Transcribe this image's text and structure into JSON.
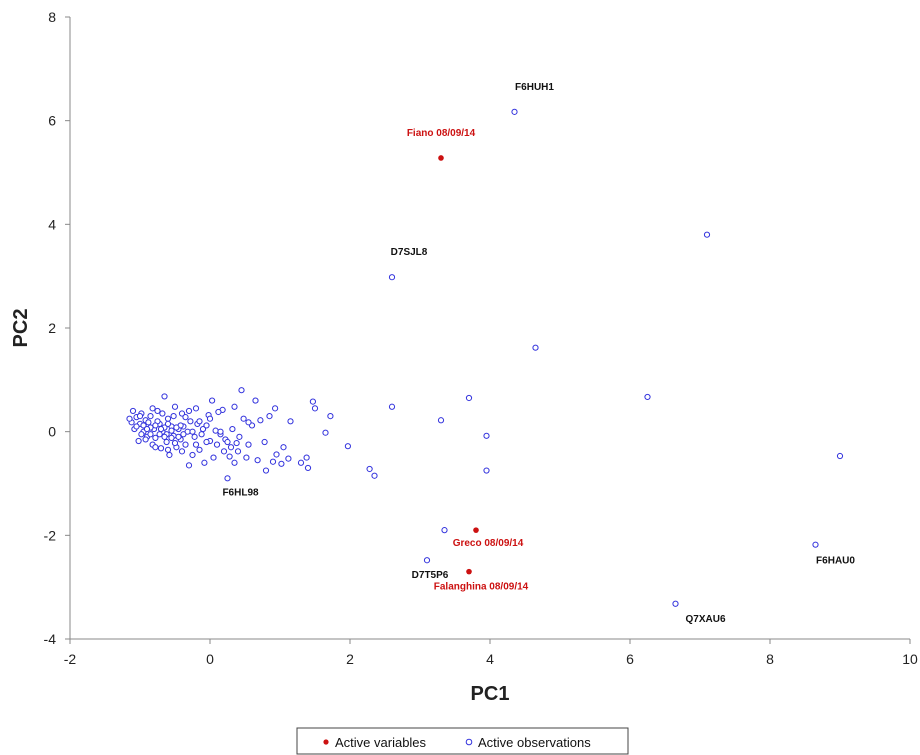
{
  "chart_data": {
    "type": "scatter",
    "xlabel": "PC1",
    "ylabel": "PC2",
    "xlim": [
      -2,
      10
    ],
    "ylim": [
      -4,
      8
    ],
    "xticks": [
      -2,
      0,
      2,
      4,
      6,
      8,
      10
    ],
    "yticks": [
      -4,
      -2,
      0,
      2,
      4,
      6,
      8
    ],
    "grid": false,
    "legend_position": "bottom-center",
    "series": [
      {
        "name": "Active variables",
        "color": "#cc1111",
        "marker": "filled-circle",
        "points": [
          {
            "x": 3.3,
            "y": 5.28,
            "label": "Fiano 08/09/14"
          },
          {
            "x": 3.8,
            "y": -1.9,
            "label": "Greco 08/09/14"
          },
          {
            "x": 3.7,
            "y": -2.7,
            "label": "Falanghina 08/09/14"
          }
        ]
      },
      {
        "name": "Active observations",
        "color": "#3333dd",
        "marker": "open-circle",
        "points": [
          {
            "x": 4.35,
            "y": 6.17,
            "label": "F6HUH1"
          },
          {
            "x": 2.6,
            "y": 2.98,
            "label": "D7SJL8"
          },
          {
            "x": 7.1,
            "y": 3.8
          },
          {
            "x": 4.65,
            "y": 1.62
          },
          {
            "x": 6.25,
            "y": 0.67
          },
          {
            "x": 9.0,
            "y": -0.47
          },
          {
            "x": 8.65,
            "y": -2.18,
            "label": "F6HAU0"
          },
          {
            "x": 6.65,
            "y": -3.32,
            "label": "Q7XAU6"
          },
          {
            "x": 3.1,
            "y": -2.48,
            "label": "D7T5P6"
          },
          {
            "x": 3.35,
            "y": -1.9
          },
          {
            "x": 3.7,
            "y": 0.65
          },
          {
            "x": 3.3,
            "y": 0.22
          },
          {
            "x": 3.95,
            "y": -0.08
          },
          {
            "x": 3.95,
            "y": -0.75
          },
          {
            "x": 2.6,
            "y": 0.48
          },
          {
            "x": 2.35,
            "y": -0.85
          },
          {
            "x": 2.28,
            "y": -0.72
          },
          {
            "x": 1.97,
            "y": -0.28
          },
          {
            "x": 1.72,
            "y": 0.3
          },
          {
            "x": 1.65,
            "y": -0.02
          },
          {
            "x": 1.5,
            "y": 0.45
          },
          {
            "x": 1.47,
            "y": 0.58
          },
          {
            "x": 1.4,
            "y": -0.7
          },
          {
            "x": 1.38,
            "y": -0.5
          },
          {
            "x": 1.3,
            "y": -0.6
          },
          {
            "x": 1.15,
            "y": 0.2
          },
          {
            "x": 1.12,
            "y": -0.52
          },
          {
            "x": 1.05,
            "y": -0.3
          },
          {
            "x": 1.02,
            "y": -0.62
          },
          {
            "x": 0.95,
            "y": -0.44
          },
          {
            "x": 0.93,
            "y": 0.45
          },
          {
            "x": 0.9,
            "y": -0.58
          },
          {
            "x": 0.85,
            "y": 0.3
          },
          {
            "x": 0.8,
            "y": -0.75
          },
          {
            "x": 0.78,
            "y": -0.2
          },
          {
            "x": 0.72,
            "y": 0.22
          },
          {
            "x": 0.68,
            "y": -0.55
          },
          {
            "x": 0.65,
            "y": 0.6
          },
          {
            "x": 0.6,
            "y": 0.12
          },
          {
            "x": 0.55,
            "y": -0.25
          },
          {
            "x": 0.52,
            "y": -0.5
          },
          {
            "x": 0.48,
            "y": 0.25
          },
          {
            "x": 0.45,
            "y": 0.8
          },
          {
            "x": 0.42,
            "y": -0.1
          },
          {
            "x": 0.4,
            "y": -0.38
          },
          {
            "x": 0.38,
            "y": -0.22
          },
          {
            "x": 0.35,
            "y": -0.6
          },
          {
            "x": 0.32,
            "y": 0.05
          },
          {
            "x": 0.3,
            "y": -0.3
          },
          {
            "x": 0.28,
            "y": -0.48
          },
          {
            "x": 0.25,
            "y": -0.9,
            "label": "F6HL98"
          },
          {
            "x": 0.22,
            "y": -0.15
          },
          {
            "x": 0.2,
            "y": -0.38
          },
          {
            "x": 0.18,
            "y": 0.42
          },
          {
            "x": 0.15,
            "y": -0.05
          },
          {
            "x": 0.12,
            "y": 0.38
          },
          {
            "x": 0.1,
            "y": -0.25
          },
          {
            "x": 0.08,
            "y": 0.02
          },
          {
            "x": 0.05,
            "y": -0.5
          },
          {
            "x": 0.03,
            "y": 0.6
          },
          {
            "x": 0.0,
            "y": -0.18
          },
          {
            "x": -0.02,
            "y": 0.32
          },
          {
            "x": -0.05,
            "y": -0.2
          },
          {
            "x": -0.08,
            "y": -0.6
          },
          {
            "x": -0.1,
            "y": 0.05
          },
          {
            "x": -0.12,
            "y": -0.05
          },
          {
            "x": -0.15,
            "y": -0.35
          },
          {
            "x": -0.18,
            "y": 0.15
          },
          {
            "x": -0.2,
            "y": 0.45
          },
          {
            "x": -0.22,
            "y": -0.1
          },
          {
            "x": -0.25,
            "y": -0.45
          },
          {
            "x": -0.28,
            "y": 0.2
          },
          {
            "x": -0.3,
            "y": -0.65
          },
          {
            "x": -0.32,
            "y": 0.0
          },
          {
            "x": -0.35,
            "y": -0.25
          },
          {
            "x": -0.38,
            "y": 0.1
          },
          {
            "x": -0.4,
            "y": 0.35
          },
          {
            "x": -0.42,
            "y": -0.15
          },
          {
            "x": -0.45,
            "y": 0.05
          },
          {
            "x": -0.48,
            "y": -0.3
          },
          {
            "x": -0.5,
            "y": 0.48
          },
          {
            "x": -0.52,
            "y": -0.08
          },
          {
            "x": -0.55,
            "y": 0.1
          },
          {
            "x": -0.58,
            "y": -0.45
          },
          {
            "x": -0.6,
            "y": 0.25
          },
          {
            "x": -0.62,
            "y": -0.05
          },
          {
            "x": -0.65,
            "y": 0.68
          },
          {
            "x": -0.68,
            "y": 0.0
          },
          {
            "x": -0.7,
            "y": -0.32
          },
          {
            "x": -0.72,
            "y": 0.15
          },
          {
            "x": -0.75,
            "y": 0.4
          },
          {
            "x": -0.78,
            "y": -0.12
          },
          {
            "x": -0.8,
            "y": 0.05
          },
          {
            "x": -0.82,
            "y": -0.25
          },
          {
            "x": -0.85,
            "y": 0.3
          },
          {
            "x": -0.88,
            "y": 0.1
          },
          {
            "x": -0.9,
            "y": -0.1
          },
          {
            "x": -0.92,
            "y": 0.22
          },
          {
            "x": -0.95,
            "y": 0.0
          },
          {
            "x": -0.98,
            "y": 0.35
          },
          {
            "x": -1.0,
            "y": 0.15
          },
          {
            "x": -1.02,
            "y": -0.18
          },
          {
            "x": -1.05,
            "y": 0.28
          },
          {
            "x": -1.08,
            "y": 0.05
          },
          {
            "x": -1.1,
            "y": 0.4
          },
          {
            "x": -1.12,
            "y": 0.18
          },
          {
            "x": -1.15,
            "y": 0.25
          },
          {
            "x": -0.95,
            "y": 0.12
          },
          {
            "x": -0.85,
            "y": -0.05
          },
          {
            "x": -0.75,
            "y": 0.2
          },
          {
            "x": -0.65,
            "y": 0.08
          },
          {
            "x": -0.55,
            "y": 0.02
          },
          {
            "x": -0.45,
            "y": -0.1
          },
          {
            "x": -0.35,
            "y": 0.28
          },
          {
            "x": -0.72,
            "y": -0.05
          },
          {
            "x": -0.62,
            "y": -0.2
          },
          {
            "x": -0.52,
            "y": 0.3
          },
          {
            "x": -0.42,
            "y": 0.12
          },
          {
            "x": -0.82,
            "y": 0.45
          },
          {
            "x": -0.92,
            "y": -0.15
          },
          {
            "x": -1.05,
            "y": 0.1
          },
          {
            "x": -0.6,
            "y": -0.35
          },
          {
            "x": -0.3,
            "y": 0.4
          },
          {
            "x": -0.25,
            "y": 0.0
          },
          {
            "x": -0.15,
            "y": 0.2
          },
          {
            "x": -0.05,
            "y": 0.12
          },
          {
            "x": 0.35,
            "y": 0.48
          },
          {
            "x": 0.55,
            "y": 0.18
          },
          {
            "x": 0.25,
            "y": -0.2
          },
          {
            "x": 0.15,
            "y": 0.0
          },
          {
            "x": -0.68,
            "y": 0.35
          },
          {
            "x": -0.78,
            "y": -0.3
          },
          {
            "x": -0.88,
            "y": 0.18
          },
          {
            "x": -0.98,
            "y": -0.05
          },
          {
            "x": -0.5,
            "y": -0.22
          },
          {
            "x": -0.4,
            "y": -0.38
          },
          {
            "x": -0.2,
            "y": -0.25
          },
          {
            "x": 0.0,
            "y": 0.25
          },
          {
            "x": -0.7,
            "y": 0.05
          },
          {
            "x": -0.6,
            "y": 0.15
          },
          {
            "x": -0.55,
            "y": -0.12
          },
          {
            "x": -0.48,
            "y": 0.08
          },
          {
            "x": -0.85,
            "y": 0.08
          },
          {
            "x": -0.78,
            "y": 0.12
          },
          {
            "x": -1.0,
            "y": 0.3
          },
          {
            "x": -0.9,
            "y": 0.05
          },
          {
            "x": -0.65,
            "y": -0.1
          },
          {
            "x": -0.38,
            "y": -0.05
          }
        ]
      }
    ]
  }
}
